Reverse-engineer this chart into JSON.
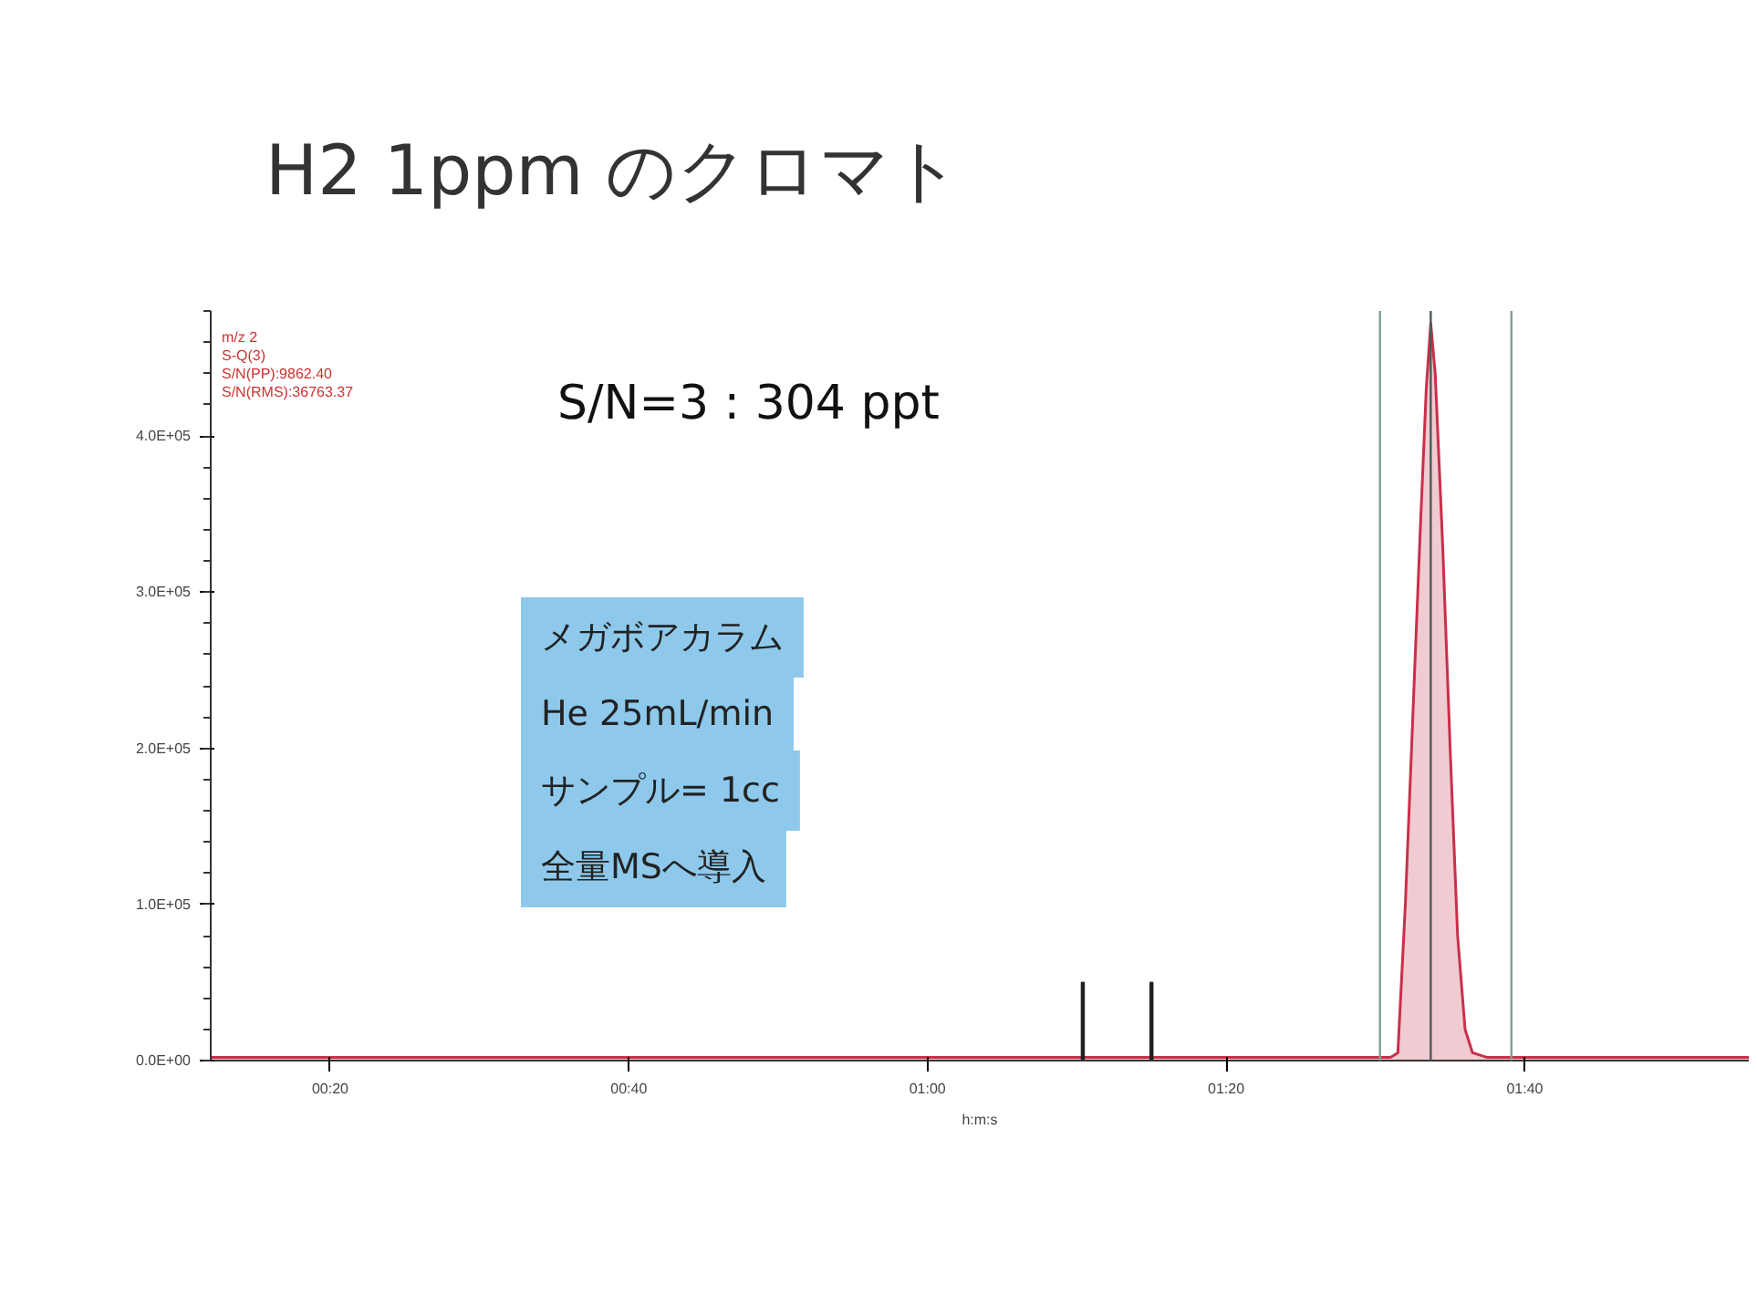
{
  "chart_data": {
    "type": "area",
    "title": "H2 1ppm のクロマト",
    "xlabel": "h:m:s",
    "annotations": [
      "m/z 2",
      "S-Q(3)",
      "S/N(PP):9862.40",
      "S/N(RMS):36763.37",
      "S/N=3 : 304 ppt",
      "メガボアカラム",
      "He 25mL/min",
      "サンプル= 1cc",
      "全量MSへ導入"
    ],
    "x": [
      12,
      60,
      91.0,
      91.5,
      92.0,
      92.5,
      93.0,
      93.4,
      93.7,
      94.0,
      94.5,
      95.0,
      95.5,
      96.0,
      96.5,
      97.5,
      115
    ],
    "series": [
      {
        "color": "#c8304a",
        "values": [
          2000,
          2000,
          2000,
          5000,
          100000,
          220000,
          340000,
          430000,
          472000,
          440000,
          330000,
          200000,
          80000,
          20000,
          5000,
          2000,
          2000
        ]
      },
      {
        "type": "bar",
        "color": "#222222",
        "x": [
          70.4,
          75.0
        ],
        "values": [
          50000,
          50000
        ]
      }
    ],
    "xlim": [
      12,
      115
    ],
    "ylim": [
      0,
      480000
    ],
    "xticks": [
      {
        "value": 20,
        "label": "00:20"
      },
      {
        "value": 40,
        "label": "00:40"
      },
      {
        "value": 60,
        "label": "01:00"
      },
      {
        "value": 80,
        "label": "01:20"
      },
      {
        "value": 100,
        "label": "01:40"
      }
    ],
    "yticks": [
      {
        "value": 0,
        "label": "0.0E+00"
      },
      {
        "value": 100000,
        "label": "1.0E+05"
      },
      {
        "value": 200000,
        "label": "2.0E+05"
      },
      {
        "value": 300000,
        "label": "3.0E+05"
      },
      {
        "value": 400000,
        "label": "4.0E+05"
      }
    ],
    "ref_lines": [
      {
        "axis": "x",
        "value": 90.3,
        "color": "#7f9f90"
      },
      {
        "axis": "x",
        "value": 93.7,
        "color": "#4a5a55"
      },
      {
        "axis": "x",
        "value": 99.1,
        "color": "#7f9f90"
      }
    ],
    "grid": false
  }
}
